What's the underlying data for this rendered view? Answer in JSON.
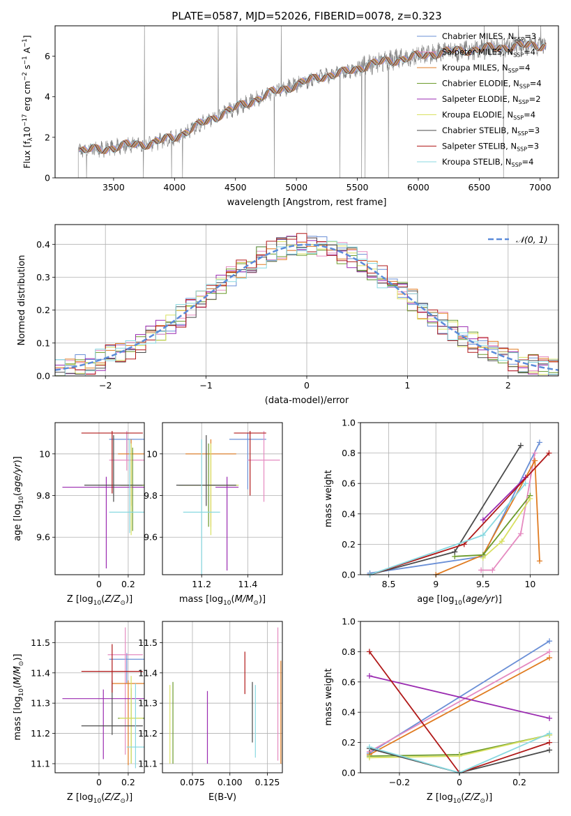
{
  "figure": {
    "title": "PLATE=0587, MJD=52026, FIBERID=0078, z=0.323"
  },
  "models": [
    {
      "name": "Chabrier MILES",
      "nssp": "3",
      "color": "#6a8fd6"
    },
    {
      "name": "Salpeter MILES",
      "nssp": "4",
      "color": "#e58ac0"
    },
    {
      "name": "Kroupa MILES",
      "nssp": "4",
      "color": "#e07b20"
    },
    {
      "name": "Chabrier ELODIE",
      "nssp": "4",
      "color": "#6b9a2a"
    },
    {
      "name": "Salpeter ELODIE",
      "nssp": "2",
      "color": "#9a2ab0"
    },
    {
      "name": "Kroupa ELODIE",
      "nssp": "4",
      "color": "#d8e060"
    },
    {
      "name": "Chabrier STELIB",
      "nssp": "3",
      "color": "#4a4a4a"
    },
    {
      "name": "Salpeter STELIB",
      "nssp": "3",
      "color": "#b01818"
    },
    {
      "name": "Kroupa STELIB",
      "nssp": "4",
      "color": "#88d8e0"
    }
  ],
  "chart_data": [
    {
      "id": "spectrum",
      "type": "line",
      "xlabel": "wavelength [Angstrom, rest frame]",
      "ylabel": "Flux [f_λ 10^-17 erg cm^-2 s^-1 A^-1]",
      "xlim": [
        3020,
        7150
      ],
      "ylim": [
        0,
        7.5
      ],
      "xticks": [
        3500,
        4000,
        4500,
        5000,
        5500,
        6000,
        6500,
        7000
      ],
      "yticks": [
        0,
        2,
        4,
        6
      ],
      "legend_position": "right",
      "grid": false,
      "data_color": "#808080",
      "continuum": [
        [
          3210,
          1.35
        ],
        [
          3400,
          1.4
        ],
        [
          3600,
          1.6
        ],
        [
          3800,
          1.7
        ],
        [
          4000,
          2.0
        ],
        [
          4200,
          2.6
        ],
        [
          4400,
          3.2
        ],
        [
          4600,
          3.7
        ],
        [
          4800,
          4.2
        ],
        [
          5000,
          4.6
        ],
        [
          5200,
          5.0
        ],
        [
          5400,
          5.2
        ],
        [
          5600,
          5.6
        ],
        [
          5800,
          5.8
        ],
        [
          6000,
          6.0
        ],
        [
          6200,
          6.2
        ],
        [
          6400,
          6.3
        ],
        [
          6600,
          6.4
        ],
        [
          6800,
          6.5
        ],
        [
          7050,
          6.55
        ]
      ]
    },
    {
      "id": "residuals",
      "type": "histogram",
      "xlabel": "(data-model)/error",
      "ylabel": "Normed distribution",
      "xlim": [
        -2.5,
        2.5
      ],
      "ylim": [
        0,
        0.46
      ],
      "xticks": [
        -2,
        -1,
        0,
        1,
        2
      ],
      "yticks": [
        0.0,
        0.1,
        0.2,
        0.3,
        0.4
      ],
      "grid": true,
      "legend": "𝒩(0, 1)",
      "legend_color": "#5b8bd9",
      "bin_width": 0.1
    },
    {
      "id": "age_vs_Z",
      "type": "errorbar",
      "xlabel": "Z [log10(Z/Z⊙)]",
      "ylabel": "age [log10(age/yr)]",
      "xlim": [
        -0.3,
        0.31
      ],
      "ylim": [
        9.42,
        10.15
      ],
      "xticks": [
        0.0,
        0.2
      ],
      "yticks": [
        9.6,
        9.8,
        10.0
      ],
      "grid": true,
      "points": [
        {
          "model": 0,
          "x": 0.19,
          "y": 10.07,
          "xerr": 0.12,
          "yerr": [
            0.1,
            0.03
          ]
        },
        {
          "model": 1,
          "x": 0.19,
          "y": 9.97,
          "xerr": 0.12,
          "yerr": [
            0.05,
            0.14
          ]
        },
        {
          "model": 2,
          "x": 0.22,
          "y": 10.0,
          "xerr": 0.09,
          "yerr": [
            0.25,
            0.07
          ]
        },
        {
          "model": 3,
          "x": 0.23,
          "y": 9.85,
          "xerr": 0.08,
          "yerr": [
            0.22,
            0.18
          ]
        },
        {
          "model": 4,
          "x": 0.05,
          "y": 9.84,
          "xerr": 0.3,
          "yerr": [
            0.39,
            0.05
          ]
        },
        {
          "model": 5,
          "x": 0.22,
          "y": 9.85,
          "xerr": 0.08,
          "yerr": [
            0.24,
            0.2
          ]
        },
        {
          "model": 6,
          "x": 0.1,
          "y": 9.85,
          "xerr": [
            0.2,
            0.2
          ],
          "yerr": [
            0.08,
            0.24
          ]
        },
        {
          "model": 7,
          "x": 0.09,
          "y": 10.1,
          "xerr": [
            0.21,
            0.21
          ],
          "yerr": [
            0.29,
            0.01
          ]
        },
        {
          "model": 8,
          "x": 0.21,
          "y": 9.72,
          "xerr": 0.14,
          "yerr": [
            0.1,
            0.35
          ]
        }
      ]
    },
    {
      "id": "age_vs_mass",
      "type": "errorbar",
      "xlabel": "mass [log10(M/M⊙)]",
      "ylabel": "",
      "xlim": [
        11.03,
        11.55
      ],
      "ylim": [
        9.42,
        10.15
      ],
      "xticks": [
        11.2,
        11.4
      ],
      "yticks": [
        9.6,
        9.8,
        10.0
      ],
      "grid": true,
      "points": [
        {
          "model": 0,
          "x": 11.4,
          "y": 10.07,
          "xerr": 0.08,
          "yerr": [
            0.24,
            0.03
          ]
        },
        {
          "model": 1,
          "x": 11.47,
          "y": 9.97,
          "xerr": 0.07,
          "yerr": [
            0.2,
            0.14
          ]
        },
        {
          "model": 2,
          "x": 11.24,
          "y": 10.0,
          "xerr": 0.11,
          "yerr": [
            0.35,
            0.07
          ]
        },
        {
          "model": 3,
          "x": 11.23,
          "y": 9.85,
          "xerr": 0.13,
          "yerr": [
            0.2,
            0.2
          ]
        },
        {
          "model": 4,
          "x": 11.31,
          "y": 9.84,
          "xerr": 0.05,
          "yerr": [
            0.4,
            0.05
          ]
        },
        {
          "model": 5,
          "x": 11.24,
          "y": 9.85,
          "xerr": 0.12,
          "yerr": [
            0.24,
            0.2
          ]
        },
        {
          "model": 6,
          "x": 11.22,
          "y": 9.85,
          "xerr": 0.13,
          "yerr": [
            0.1,
            0.24
          ]
        },
        {
          "model": 7,
          "x": 11.41,
          "y": 10.1,
          "xerr": 0.07,
          "yerr": [
            0.3,
            0.01
          ]
        },
        {
          "model": 8,
          "x": 11.2,
          "y": 9.72,
          "xerr": 0.08,
          "yerr": [
            0.3,
            0.35
          ]
        }
      ]
    },
    {
      "id": "mass_weight_vs_age",
      "type": "line",
      "xlabel": "age [log10(age/yr)]",
      "ylabel": "mass weight",
      "xlim": [
        8.2,
        10.3
      ],
      "ylim": [
        0.0,
        1.0
      ],
      "xticks": [
        8.5,
        9.0,
        9.5,
        10.0
      ],
      "yticks": [
        0.0,
        0.2,
        0.4,
        0.6,
        0.8,
        1.0
      ],
      "grid": true,
      "series": [
        {
          "model": 0,
          "x": [
            8.3,
            9.5,
            10.1
          ],
          "y": [
            0.01,
            0.12,
            0.87
          ]
        },
        {
          "model": 1,
          "x": [
            9.48,
            9.6,
            9.9,
            10.05
          ],
          "y": [
            0.03,
            0.03,
            0.27,
            0.8
          ]
        },
        {
          "model": 2,
          "x": [
            9.0,
            9.5,
            10.05,
            10.1
          ],
          "y": [
            0.0,
            0.13,
            0.75,
            0.09
          ]
        },
        {
          "model": 3,
          "x": [
            9.2,
            9.5,
            10.0
          ],
          "y": [
            0.12,
            0.13,
            0.52
          ]
        },
        {
          "model": 4,
          "x": [
            9.5,
            9.95
          ],
          "y": [
            0.36,
            0.64
          ]
        },
        {
          "model": 5,
          "x": [
            9.5,
            9.7,
            10.0
          ],
          "y": [
            0.11,
            0.22,
            0.5
          ]
        },
        {
          "model": 6,
          "x": [
            8.3,
            9.2,
            9.9
          ],
          "y": [
            0.0,
            0.15,
            0.85
          ]
        },
        {
          "model": 7,
          "x": [
            8.3,
            9.3,
            10.2
          ],
          "y": [
            0.0,
            0.2,
            0.8
          ]
        },
        {
          "model": 8,
          "x": [
            8.3,
            9.5,
            9.95
          ],
          "y": [
            0.0,
            0.26,
            0.6
          ]
        }
      ]
    },
    {
      "id": "mass_vs_Z",
      "type": "errorbar",
      "xlabel": "Z [log10(Z/Z⊙)]",
      "ylabel": "mass [log10(M/M⊙)]",
      "xlim": [
        -0.3,
        0.31
      ],
      "ylim": [
        11.07,
        11.57
      ],
      "xticks": [
        0.0,
        0.2
      ],
      "yticks": [
        11.1,
        11.2,
        11.3,
        11.4,
        11.5
      ],
      "grid": true,
      "points": [
        {
          "model": 0,
          "x": 0.19,
          "y": 11.445,
          "xerr": 0.12,
          "yerr": [
            0.08,
            0.02
          ]
        },
        {
          "model": 1,
          "x": 0.18,
          "y": 11.46,
          "xerr": 0.12,
          "yerr": [
            0.33,
            0.09
          ]
        },
        {
          "model": 2,
          "x": 0.2,
          "y": 11.365,
          "xerr": 0.11,
          "yerr": [
            0.27,
            0.01
          ]
        },
        {
          "model": 3,
          "x": 0.22,
          "y": 11.25,
          "xerr": 0.09,
          "yerr": [
            0.15,
            0.1
          ]
        },
        {
          "model": 4,
          "x": 0.03,
          "y": 11.315,
          "xerr": 0.28,
          "yerr": [
            0.2,
            0.03
          ]
        },
        {
          "model": 5,
          "x": 0.22,
          "y": 11.25,
          "xerr": 0.08,
          "yerr": [
            0.15,
            0.14
          ]
        },
        {
          "model": 6,
          "x": 0.09,
          "y": 11.225,
          "xerr": [
            0.21,
            0.21
          ],
          "yerr": [
            0.03,
            0.15
          ]
        },
        {
          "model": 7,
          "x": 0.09,
          "y": 11.405,
          "xerr": [
            0.21,
            0.21
          ],
          "yerr": [
            0.07,
            0.09
          ]
        },
        {
          "model": 8,
          "x": 0.25,
          "y": 11.155,
          "xerr": 0.06,
          "yerr": [
            0.07,
            0.21
          ]
        }
      ]
    },
    {
      "id": "mass_vs_ebv",
      "type": "errorbar",
      "xlabel": "E(B-V)",
      "ylabel": "",
      "xlim": [
        0.055,
        0.135
      ],
      "ylim": [
        11.07,
        11.57
      ],
      "xticks": [
        0.075,
        0.1,
        0.125
      ],
      "xtick_labels": [
        "0.075",
        "0.100",
        "0.125"
      ],
      "yticks": [
        11.1,
        11.2,
        11.3,
        11.4,
        11.5
      ],
      "grid": true,
      "points": [
        {
          "model": 1,
          "x": 0.132,
          "y": 11.4,
          "xerr": 0,
          "yerr": [
            0.29,
            0.15
          ]
        },
        {
          "model": 2,
          "x": 0.134,
          "y": 11.3,
          "xerr": 0,
          "yerr": [
            0.2,
            0.14
          ]
        },
        {
          "model": 3,
          "x": 0.062,
          "y": 11.25,
          "xerr": 0,
          "yerr": [
            0.15,
            0.12
          ]
        },
        {
          "model": 4,
          "x": 0.085,
          "y": 11.22,
          "xerr": 0,
          "yerr": [
            0.12,
            0.12
          ]
        },
        {
          "model": 5,
          "x": 0.06,
          "y": 11.23,
          "xerr": 0,
          "yerr": [
            0.13,
            0.13
          ]
        },
        {
          "model": 6,
          "x": 0.115,
          "y": 11.27,
          "xerr": 0,
          "yerr": [
            0.1,
            0.1
          ]
        },
        {
          "model": 7,
          "x": 0.11,
          "y": 11.4,
          "xerr": 0,
          "yerr": [
            0.07,
            0.07
          ]
        },
        {
          "model": 8,
          "x": 0.117,
          "y": 11.24,
          "xerr": 0,
          "yerr": [
            0.12,
            0.12
          ]
        }
      ]
    },
    {
      "id": "mass_weight_vs_Z",
      "type": "line",
      "xlabel": "Z [log10(Z/Z⊙)]",
      "ylabel": "mass weight",
      "xlim": [
        -0.33,
        0.33
      ],
      "ylim": [
        0.0,
        1.0
      ],
      "xticks": [
        -0.2,
        0.0,
        0.2
      ],
      "yticks": [
        0.0,
        0.2,
        0.4,
        0.6,
        0.8,
        1.0
      ],
      "grid": true,
      "series": [
        {
          "model": 0,
          "x": [
            -0.3,
            0.3
          ],
          "y": [
            0.13,
            0.87
          ]
        },
        {
          "model": 1,
          "x": [
            -0.3,
            0.3
          ],
          "y": [
            0.14,
            0.8
          ]
        },
        {
          "model": 2,
          "x": [
            -0.3,
            0.3
          ],
          "y": [
            0.12,
            0.76
          ]
        },
        {
          "model": 3,
          "x": [
            -0.3,
            0.0,
            0.3
          ],
          "y": [
            0.11,
            0.12,
            0.25
          ]
        },
        {
          "model": 4,
          "x": [
            -0.3,
            0.3
          ],
          "y": [
            0.64,
            0.36
          ]
        },
        {
          "model": 5,
          "x": [
            -0.3,
            0.0,
            0.3
          ],
          "y": [
            0.1,
            0.11,
            0.25
          ]
        },
        {
          "model": 6,
          "x": [
            -0.3,
            0.0,
            0.3
          ],
          "y": [
            0.16,
            0.0,
            0.15
          ]
        },
        {
          "model": 7,
          "x": [
            -0.3,
            0.0,
            0.3
          ],
          "y": [
            0.8,
            0.0,
            0.2
          ]
        },
        {
          "model": 8,
          "x": [
            -0.3,
            0.0,
            0.3
          ],
          "y": [
            0.17,
            0.0,
            0.26
          ]
        }
      ]
    }
  ]
}
